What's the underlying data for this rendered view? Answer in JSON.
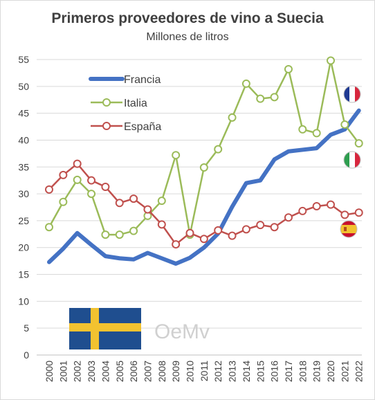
{
  "chart_data": {
    "type": "line",
    "title": "Primeros proveedores de vino a Suecia",
    "subtitle": "Millones de litros",
    "xlabel": "",
    "ylabel": "",
    "ylim": [
      0,
      55
    ],
    "yticks": [
      0,
      5,
      10,
      15,
      20,
      25,
      30,
      35,
      40,
      45,
      50,
      55
    ],
    "x": [
      "2000",
      "2001",
      "2002",
      "2003",
      "2004",
      "2005",
      "2006",
      "2007",
      "2008",
      "2009",
      "2010",
      "2011",
      "2012",
      "2013",
      "2014",
      "2015",
      "2016",
      "2017",
      "2018",
      "2019",
      "2020",
      "2021",
      "2022"
    ],
    "grid": "horizontal",
    "legend_position": "top-left",
    "series": [
      {
        "name": "Francia",
        "color": "#4472c4",
        "marker": "none",
        "values": [
          17.3,
          19.8,
          22.7,
          20.5,
          18.4,
          18.0,
          17.8,
          19.0,
          18.0,
          17.0,
          18.1,
          20.0,
          22.6,
          27.6,
          32.0,
          32.5,
          36.4,
          37.9,
          38.2,
          38.5,
          41.0,
          42.0,
          45.5
        ]
      },
      {
        "name": "Italia",
        "color": "#9bbb59",
        "marker": "circle",
        "values": [
          23.8,
          28.5,
          32.6,
          30.0,
          22.4,
          22.4,
          23.1,
          25.9,
          28.7,
          37.2,
          22.4,
          34.9,
          38.3,
          44.2,
          50.5,
          47.7,
          48.0,
          53.2,
          42.0,
          41.3,
          54.8,
          42.9,
          39.4
        ]
      },
      {
        "name": "España",
        "color": "#c0504d",
        "marker": "circle",
        "values": [
          30.8,
          33.5,
          35.6,
          32.5,
          31.3,
          28.3,
          29.1,
          27.1,
          24.3,
          20.6,
          22.7,
          21.6,
          23.2,
          22.2,
          23.4,
          24.2,
          23.8,
          25.6,
          26.8,
          27.7,
          28.0,
          26.1,
          26.5
        ]
      }
    ],
    "annotations": [
      {
        "name": "flag-france-icon",
        "series": "Francia"
      },
      {
        "name": "flag-italy-icon",
        "series": "Italia"
      },
      {
        "name": "flag-spain-icon",
        "series": "España"
      },
      {
        "name": "flag-sweden-icon"
      },
      {
        "name": "oemv-logo",
        "text": "OeMv"
      }
    ]
  }
}
